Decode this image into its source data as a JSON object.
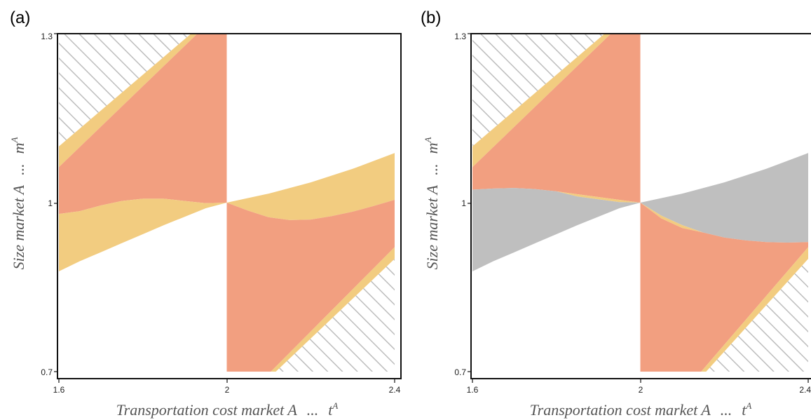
{
  "chart_data": [
    {
      "type": "area",
      "panel_label": "(a)",
      "xlabel": "Transportation cost market A",
      "xlabel_symbol": "t",
      "ylabel": "Size market A",
      "ylabel_symbol": "m",
      "axis_separator": "...",
      "superscript": "A",
      "x_ticks": [
        "1.6",
        "2",
        "2.4"
      ],
      "y_ticks": [
        "0.7",
        "1",
        "1.3"
      ],
      "xlim": [
        1.6,
        2.4
      ],
      "ylim": [
        0.7,
        1.3
      ],
      "grid": false,
      "colors": {
        "salmon": "#f29f80",
        "yellow": "#f2cc80",
        "hatch": "#bdbdbd"
      },
      "regions": {
        "hatch_top_left": [
          [
            1.6,
            1.3
          ],
          [
            1.6,
            1.1
          ],
          [
            1.915,
            1.3
          ]
        ],
        "yellow_band_top_left": [
          [
            1.6,
            1.1
          ],
          [
            1.6,
            1.063
          ],
          [
            1.93,
            1.3
          ],
          [
            1.915,
            1.3
          ]
        ],
        "salmon_left": [
          [
            1.6,
            1.063
          ],
          [
            1.6,
            0.98
          ],
          [
            1.65,
            0.985
          ],
          [
            1.7,
            0.995
          ],
          [
            1.75,
            1.003
          ],
          [
            1.8,
            1.007
          ],
          [
            1.85,
            1.007
          ],
          [
            1.9,
            1.003
          ],
          [
            1.95,
            0.999
          ],
          [
            2.0,
            1.0
          ],
          [
            2.0,
            1.3
          ],
          [
            1.93,
            1.3
          ]
        ],
        "yellow_left": [
          [
            1.6,
            0.98
          ],
          [
            1.65,
            0.985
          ],
          [
            1.7,
            0.995
          ],
          [
            1.75,
            1.003
          ],
          [
            1.8,
            1.007
          ],
          [
            1.85,
            1.007
          ],
          [
            1.9,
            1.003
          ],
          [
            1.95,
            0.999
          ],
          [
            2.0,
            1.0
          ],
          [
            1.95,
            0.99
          ],
          [
            1.9,
            0.975
          ],
          [
            1.85,
            0.96
          ],
          [
            1.8,
            0.944
          ],
          [
            1.75,
            0.928
          ],
          [
            1.7,
            0.912
          ],
          [
            1.65,
            0.896
          ],
          [
            1.6,
            0.878
          ]
        ],
        "yellow_right": [
          [
            2.0,
            1.0
          ],
          [
            2.1,
            1.016
          ],
          [
            2.2,
            1.036
          ],
          [
            2.3,
            1.06
          ],
          [
            2.4,
            1.088
          ],
          [
            2.4,
            1.005
          ],
          [
            2.35,
            0.994
          ],
          [
            2.3,
            0.984
          ],
          [
            2.25,
            0.976
          ],
          [
            2.2,
            0.97
          ],
          [
            2.15,
            0.969
          ],
          [
            2.1,
            0.974
          ],
          [
            2.05,
            0.986
          ]
        ],
        "salmon_right": [
          [
            2.0,
            1.0
          ],
          [
            2.05,
            0.986
          ],
          [
            2.1,
            0.974
          ],
          [
            2.15,
            0.969
          ],
          [
            2.2,
            0.97
          ],
          [
            2.25,
            0.976
          ],
          [
            2.3,
            0.984
          ],
          [
            2.35,
            0.994
          ],
          [
            2.4,
            1.005
          ],
          [
            2.4,
            0.921
          ],
          [
            2.105,
            0.7
          ],
          [
            2.0,
            0.7
          ]
        ],
        "yellow_band_bottom_right": [
          [
            2.4,
            0.921
          ],
          [
            2.4,
            0.9
          ],
          [
            2.117,
            0.7
          ],
          [
            2.105,
            0.7
          ]
        ],
        "hatch_bottom_right": [
          [
            2.4,
            0.9
          ],
          [
            2.4,
            0.7
          ],
          [
            2.117,
            0.7
          ]
        ]
      }
    },
    {
      "type": "area",
      "panel_label": "(b)",
      "xlabel": "Transportation cost market A",
      "xlabel_symbol": "t",
      "ylabel": "Size market A",
      "ylabel_symbol": "m",
      "axis_separator": "...",
      "superscript": "A",
      "x_ticks": [
        "1.6",
        "2",
        "2.4"
      ],
      "y_ticks": [
        "0.7",
        "1",
        "1.3"
      ],
      "xlim": [
        1.6,
        2.4
      ],
      "ylim": [
        0.7,
        1.3
      ],
      "grid": false,
      "colors": {
        "salmon": "#f29f80",
        "yellow": "#f2cc80",
        "gray": "#bfbfbf",
        "hatch": "#bdbdbd"
      },
      "regions": {
        "hatch_top_left": [
          [
            1.6,
            1.3
          ],
          [
            1.6,
            1.1
          ],
          [
            1.915,
            1.3
          ]
        ],
        "yellow_band_top_left": [
          [
            1.6,
            1.1
          ],
          [
            1.6,
            1.063
          ],
          [
            1.93,
            1.3
          ],
          [
            1.915,
            1.3
          ]
        ],
        "salmon_left": [
          [
            1.6,
            1.063
          ],
          [
            1.6,
            1.023
          ],
          [
            1.65,
            1.025
          ],
          [
            1.7,
            1.026
          ],
          [
            1.75,
            1.024
          ],
          [
            1.8,
            1.02
          ],
          [
            1.85,
            1.015
          ],
          [
            1.9,
            1.01
          ],
          [
            1.95,
            1.005
          ],
          [
            2.0,
            1.0
          ],
          [
            2.0,
            1.3
          ],
          [
            1.93,
            1.3
          ]
        ],
        "yellow_left_sliver": [
          [
            1.8,
            1.02
          ],
          [
            1.85,
            1.015
          ],
          [
            1.9,
            1.01
          ],
          [
            1.95,
            1.005
          ],
          [
            2.0,
            1.0
          ],
          [
            1.95,
            1.001
          ],
          [
            1.9,
            1.006
          ],
          [
            1.85,
            1.011
          ]
        ],
        "gray_left": [
          [
            1.6,
            1.023
          ],
          [
            1.65,
            1.025
          ],
          [
            1.7,
            1.026
          ],
          [
            1.75,
            1.024
          ],
          [
            1.8,
            1.02
          ],
          [
            1.85,
            1.011
          ],
          [
            1.9,
            1.006
          ],
          [
            1.95,
            1.001
          ],
          [
            2.0,
            1.0
          ],
          [
            1.95,
            0.99
          ],
          [
            1.9,
            0.975
          ],
          [
            1.85,
            0.96
          ],
          [
            1.8,
            0.944
          ],
          [
            1.75,
            0.928
          ],
          [
            1.7,
            0.912
          ],
          [
            1.65,
            0.896
          ],
          [
            1.6,
            0.878
          ]
        ],
        "gray_right": [
          [
            2.0,
            1.0
          ],
          [
            2.1,
            1.016
          ],
          [
            2.2,
            1.036
          ],
          [
            2.3,
            1.06
          ],
          [
            2.4,
            1.088
          ],
          [
            2.4,
            0.93
          ],
          [
            2.35,
            0.929
          ],
          [
            2.3,
            0.93
          ],
          [
            2.25,
            0.933
          ],
          [
            2.2,
            0.938
          ],
          [
            2.15,
            0.947
          ],
          [
            2.1,
            0.96
          ],
          [
            2.05,
            0.977
          ]
        ],
        "yellow_right_sliver": [
          [
            2.0,
            1.0
          ],
          [
            2.05,
            0.977
          ],
          [
            2.1,
            0.96
          ],
          [
            2.15,
            0.947
          ],
          [
            2.1,
            0.955
          ],
          [
            2.05,
            0.972
          ]
        ],
        "salmon_right": [
          [
            2.0,
            1.0
          ],
          [
            2.05,
            0.972
          ],
          [
            2.1,
            0.955
          ],
          [
            2.15,
            0.947
          ],
          [
            2.2,
            0.938
          ],
          [
            2.25,
            0.933
          ],
          [
            2.3,
            0.93
          ],
          [
            2.35,
            0.929
          ],
          [
            2.4,
            0.93
          ],
          [
            2.4,
            0.921
          ],
          [
            2.145,
            0.7
          ],
          [
            2.0,
            0.7
          ]
        ],
        "yellow_band_bottom_right": [
          [
            2.4,
            0.921
          ],
          [
            2.4,
            0.9
          ],
          [
            2.157,
            0.7
          ],
          [
            2.145,
            0.7
          ]
        ],
        "hatch_bottom_right": [
          [
            2.4,
            0.9
          ],
          [
            2.4,
            0.7
          ],
          [
            2.157,
            0.7
          ]
        ]
      }
    }
  ]
}
